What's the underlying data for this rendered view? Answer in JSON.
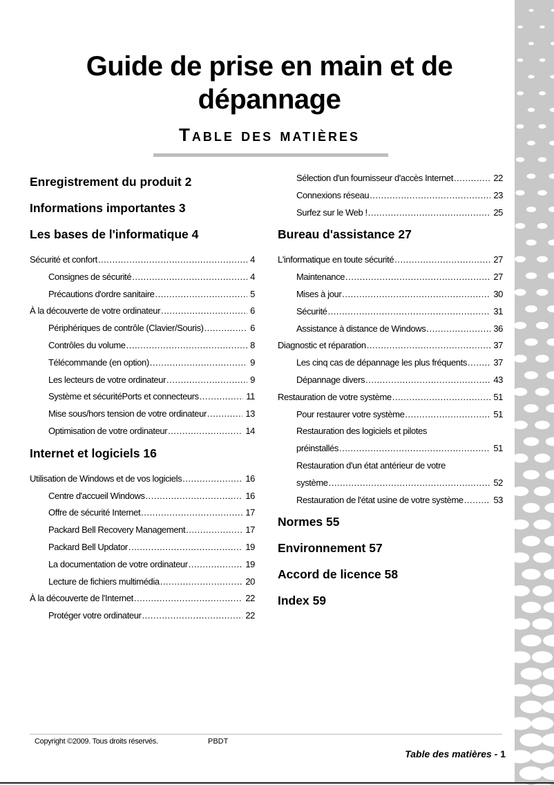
{
  "title": "Guide de prise en main et de dépannage",
  "subtitle": "Table des matières",
  "left": [
    {
      "kind": "h",
      "text": "Enregistrement du produit  2"
    },
    {
      "kind": "h",
      "text": "Informations importantes  3"
    },
    {
      "kind": "h",
      "text": "Les bases de l'informatique  4"
    },
    {
      "kind": "e",
      "text": "Sécurité et confort",
      "page": "4"
    },
    {
      "kind": "s",
      "text": "Consignes de sécurité",
      "page": "4"
    },
    {
      "kind": "s",
      "text": "Précautions d'ordre sanitaire",
      "page": "5"
    },
    {
      "kind": "e",
      "text": "À la découverte de votre ordinateur",
      "page": "6"
    },
    {
      "kind": "s",
      "text": "Périphériques de contrôle (Clavier/Souris)",
      "page": "6"
    },
    {
      "kind": "s",
      "text": "Contrôles du volume",
      "page": "8"
    },
    {
      "kind": "s",
      "text": "Télécommande (en option)",
      "page": "9"
    },
    {
      "kind": "s",
      "text": "Les lecteurs de votre ordinateur",
      "page": "9"
    },
    {
      "kind": "s",
      "text": "Système et sécuritéPorts et connecteurs",
      "page": "11"
    },
    {
      "kind": "s",
      "text": "Mise sous/hors tension de votre ordinateur",
      "page": "13"
    },
    {
      "kind": "s",
      "text": "Optimisation de votre ordinateur",
      "page": "14"
    },
    {
      "kind": "g"
    },
    {
      "kind": "h",
      "text": "Internet et logiciels  16"
    },
    {
      "kind": "e",
      "text": "Utilisation de Windows et de vos logiciels",
      "page": "16"
    },
    {
      "kind": "s",
      "text": "Centre d'accueil Windows",
      "page": "16"
    },
    {
      "kind": "s",
      "text": "Offre de sécurité Internet",
      "page": "17"
    },
    {
      "kind": "s",
      "text": "Packard Bell Recovery Management",
      "page": "17"
    },
    {
      "kind": "s",
      "text": "Packard Bell Updator",
      "page": "19"
    },
    {
      "kind": "s",
      "text": "La documentation de votre ordinateur",
      "page": "19"
    },
    {
      "kind": "s",
      "text": "Lecture de fichiers multimédia",
      "page": "20"
    },
    {
      "kind": "e",
      "text": "À la découverte de l'Internet",
      "page": "22"
    },
    {
      "kind": "s",
      "text": "Protéger votre ordinateur",
      "page": "22"
    }
  ],
  "right": [
    {
      "kind": "s",
      "text": "Sélection d'un fournisseur d'accès Internet",
      "page": "22"
    },
    {
      "kind": "s",
      "text": "Connexions réseau",
      "page": "23"
    },
    {
      "kind": "s",
      "text": "Surfez sur le Web !",
      "page": "25"
    },
    {
      "kind": "g"
    },
    {
      "kind": "h",
      "text": "Bureau d'assistance  27"
    },
    {
      "kind": "e",
      "text": "L'informatique en toute sécurité",
      "page": "27"
    },
    {
      "kind": "s",
      "text": "Maintenance",
      "page": "27"
    },
    {
      "kind": "s",
      "text": "Mises à jour",
      "page": "30"
    },
    {
      "kind": "s",
      "text": "Sécurité",
      "page": "31"
    },
    {
      "kind": "s",
      "text": "Assistance à distance de Windows",
      "page": "36"
    },
    {
      "kind": "e",
      "text": "Diagnostic et réparation",
      "page": "37"
    },
    {
      "kind": "s",
      "text": "Les cinq cas de dépannage les plus fréquents",
      "page": "37"
    },
    {
      "kind": "s",
      "text": "Dépannage divers",
      "page": "43"
    },
    {
      "kind": "e",
      "text": "Restauration de votre système",
      "page": "51"
    },
    {
      "kind": "s",
      "text": "Pour restaurer votre système",
      "page": "51"
    },
    {
      "kind": "w",
      "text": "Restauration des logiciels et pilotes",
      "text2": "préinstallés",
      "page": "51"
    },
    {
      "kind": "w",
      "text": "Restauration d'un état antérieur de votre",
      "text2": "système",
      "page": "52"
    },
    {
      "kind": "s",
      "text": "Restauration de l'état usine de votre système",
      "page": "53"
    },
    {
      "kind": "g"
    },
    {
      "kind": "h",
      "text": "Normes  55"
    },
    {
      "kind": "h",
      "text": "Environnement  57"
    },
    {
      "kind": "h",
      "text": "Accord de licence  58"
    },
    {
      "kind": "h",
      "text": "Index  59"
    }
  ],
  "footer": {
    "copyright": "Copyright ©2009. Tous droits réservés.",
    "code": "PBDT",
    "section": "Table des matières -",
    "page": "1"
  },
  "colors": {
    "strip": "#c8c8c8",
    "bar": "#bdbdbd"
  }
}
